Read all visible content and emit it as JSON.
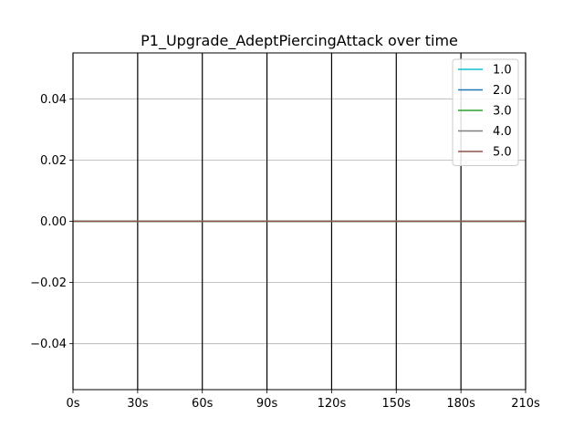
{
  "chart_data": {
    "type": "line",
    "title": "P1_Upgrade_AdeptPiercingAttack over time",
    "xlabel": "",
    "ylabel": "",
    "x_ticks": [
      "0s",
      "30s",
      "60s",
      "90s",
      "120s",
      "150s",
      "180s",
      "210s"
    ],
    "x_tick_values": [
      0,
      30,
      60,
      90,
      120,
      150,
      180,
      210
    ],
    "xlim": [
      0,
      210
    ],
    "y_ticks": [
      "−0.04",
      "−0.02",
      "0.00",
      "0.02",
      "0.04"
    ],
    "y_tick_values": [
      -0.04,
      -0.02,
      0.0,
      0.02,
      0.04
    ],
    "ylim": [
      -0.055,
      0.055
    ],
    "grid": {
      "x": true,
      "x_color": "#000000",
      "y": true,
      "y_color": "#b0b0b0"
    },
    "legend": {
      "placement": "top-right"
    },
    "series": [
      {
        "name": "1.0",
        "color": "#17becf",
        "x": [
          0,
          210
        ],
        "y": [
          0,
          0
        ]
      },
      {
        "name": "2.0",
        "color": "#1f77b4",
        "x": [
          0,
          210
        ],
        "y": [
          0,
          0
        ]
      },
      {
        "name": "3.0",
        "color": "#2ca02c",
        "x": [
          0,
          210
        ],
        "y": [
          0,
          0
        ]
      },
      {
        "name": "4.0",
        "color": "#7f7f7f",
        "x": [
          0,
          210
        ],
        "y": [
          0,
          0
        ]
      },
      {
        "name": "5.0",
        "color": "#8c564b",
        "x": [
          0,
          210
        ],
        "y": [
          0,
          0
        ]
      }
    ]
  }
}
